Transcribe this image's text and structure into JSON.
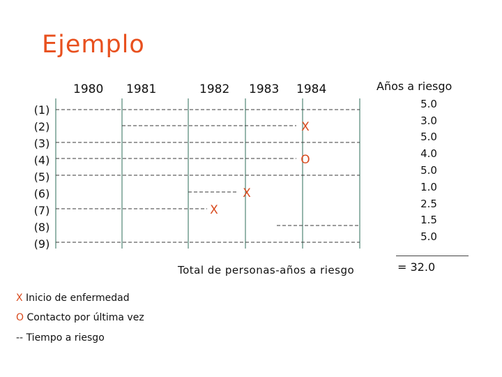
{
  "title": "Ejemplo",
  "years": [
    "1980",
    "1981",
    "1982",
    "1983",
    "1984"
  ],
  "rows": [
    "(1)",
    "(2)",
    "(3)",
    "(4)",
    "(5)",
    "(6)",
    "(7)",
    "(8)",
    "(9)"
  ],
  "risk": {
    "header": "Años a riesgo",
    "values": [
      "5.0",
      "3.0",
      "5.0",
      "4.0",
      "5.0",
      "1.0",
      "2.5",
      "1.5",
      "5.0"
    ],
    "total": "= 32.0"
  },
  "total_label": "Total de personas-años a riesgo",
  "markers": {
    "x": "X",
    "o": "O"
  },
  "legend": {
    "x_symbol": "X",
    "x_text": "Inicio de enfermedad",
    "o_symbol": "O",
    "o_text": "Contacto por última vez",
    "dash_symbol": "--",
    "dash_text": "Tiempo a riesgo"
  },
  "colors": {
    "title": "#e8501e",
    "marker": "#d84a1e",
    "grid": "#2e6e5a",
    "dash": "#3a3a3a"
  }
}
